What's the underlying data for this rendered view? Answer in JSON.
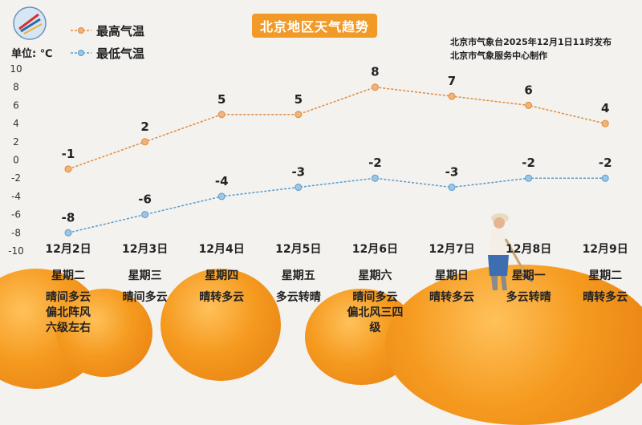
{
  "header": {
    "title": "北京地区天气趋势",
    "unit": "单位: ℃",
    "credit_line1": "北京市气象台2025年12月1日11时发布",
    "credit_line2": "北京市气象服务中心制作"
  },
  "colors": {
    "high": "#e08a3c",
    "low": "#5a9ccc",
    "title_bg": "#f29a28",
    "text": "#222222"
  },
  "chart_data": {
    "type": "line",
    "categories": [
      "12月2日",
      "12月3日",
      "12月4日",
      "12月5日",
      "12月6日",
      "12月7日",
      "12月8日",
      "12月9日"
    ],
    "series": [
      {
        "name": "最高气温",
        "values": [
          -1,
          2,
          5,
          5,
          8,
          7,
          6,
          4
        ]
      },
      {
        "name": "最低气温",
        "values": [
          -8,
          -6,
          -4,
          -3,
          -2,
          -3,
          -2,
          -2
        ]
      }
    ],
    "y_ticks": [
      10,
      8,
      6,
      4,
      2,
      0,
      -2,
      -4,
      -6,
      -8,
      -10
    ],
    "ylim": [
      -10,
      10
    ],
    "grid": false,
    "legend_position": "top-left"
  },
  "days": [
    {
      "date": "12月2日",
      "weekday": "星期二",
      "weather": [
        "晴间多云",
        "偏北阵风",
        "六级左右"
      ]
    },
    {
      "date": "12月3日",
      "weekday": "星期三",
      "weather": [
        "晴间多云"
      ]
    },
    {
      "date": "12月4日",
      "weekday": "星期四",
      "weather": [
        "晴转多云"
      ]
    },
    {
      "date": "12月5日",
      "weekday": "星期五",
      "weather": [
        "多云转晴"
      ]
    },
    {
      "date": "12月6日",
      "weekday": "星期六",
      "weather": [
        "晴间多云",
        "偏北风三四",
        "级"
      ]
    },
    {
      "date": "12月7日",
      "weekday": "星期日",
      "weather": [
        "晴转多云"
      ]
    },
    {
      "date": "12月8日",
      "weekday": "星期一",
      "weather": [
        "多云转晴"
      ]
    },
    {
      "date": "12月9日",
      "weekday": "星期二",
      "weather": [
        "晴转多云"
      ]
    }
  ]
}
